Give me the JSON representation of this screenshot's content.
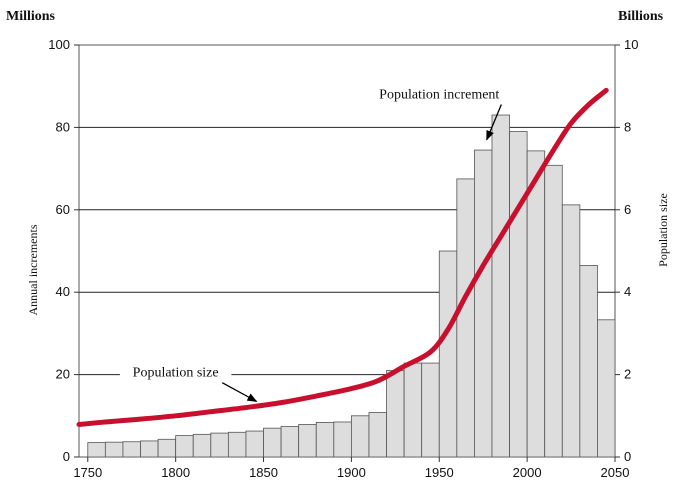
{
  "chart_data": {
    "type": "bar",
    "left_unit": "Millions",
    "right_unit": "Billions",
    "ylabel": "Annual increments",
    "y2label": "Population size",
    "ylim": [
      0,
      100
    ],
    "y2lim": [
      0,
      10
    ],
    "xlim": [
      1745,
      2050
    ],
    "x_ticks": [
      "1750",
      "1800",
      "1850",
      "1900",
      "1950",
      "2000",
      "2050"
    ],
    "y_ticks": [
      "0",
      "20",
      "40",
      "60",
      "80",
      "100"
    ],
    "y2_ticks": [
      "0",
      "2",
      "4",
      "6",
      "8",
      "10"
    ],
    "grid_y": [
      20,
      40,
      60,
      80
    ],
    "bar_width_years": 10,
    "colors": {
      "bar_fill": "#dddddd",
      "bar_stroke": "#555555",
      "line": "#c8102e",
      "grid": "#222222"
    },
    "series": [
      {
        "name": "Population increment",
        "type": "bar",
        "axis": "left",
        "x": [
          1750,
          1760,
          1770,
          1780,
          1790,
          1800,
          1810,
          1820,
          1830,
          1840,
          1850,
          1860,
          1870,
          1880,
          1890,
          1900,
          1910,
          1920,
          1930,
          1940,
          1950,
          1960,
          1970,
          1980,
          1990,
          2000,
          2010,
          2020,
          2030,
          2040
        ],
        "values": [
          3.5,
          3.6,
          3.7,
          3.9,
          4.3,
          5.2,
          5.5,
          5.8,
          6.0,
          6.3,
          7.0,
          7.4,
          7.9,
          8.4,
          8.5,
          10.0,
          10.8,
          21.0,
          22.8,
          22.8,
          50.0,
          67.5,
          74.5,
          83.0,
          79.0,
          74.3,
          70.8,
          61.2,
          46.5,
          33.3
        ]
      },
      {
        "name": "Population size",
        "type": "line",
        "axis": "right",
        "x": [
          1745,
          1760,
          1780,
          1800,
          1820,
          1840,
          1860,
          1880,
          1900,
          1915,
          1930,
          1945,
          1955,
          1965,
          1975,
          1985,
          1995,
          2005,
          2015,
          2025,
          2035,
          2045
        ],
        "values": [
          0.79,
          0.85,
          0.92,
          1.0,
          1.1,
          1.2,
          1.32,
          1.48,
          1.66,
          1.85,
          2.2,
          2.55,
          3.1,
          3.9,
          4.65,
          5.35,
          6.05,
          6.75,
          7.45,
          8.1,
          8.55,
          8.9
        ]
      }
    ],
    "annotations": [
      {
        "text": "Population increment",
        "x": 1950,
        "y": 87,
        "arrow_to": [
          1977,
          77
        ]
      },
      {
        "text": "Population size",
        "x": 1800,
        "y": 19.5,
        "arrow_to": [
          1846,
          13.5
        ]
      }
    ]
  }
}
